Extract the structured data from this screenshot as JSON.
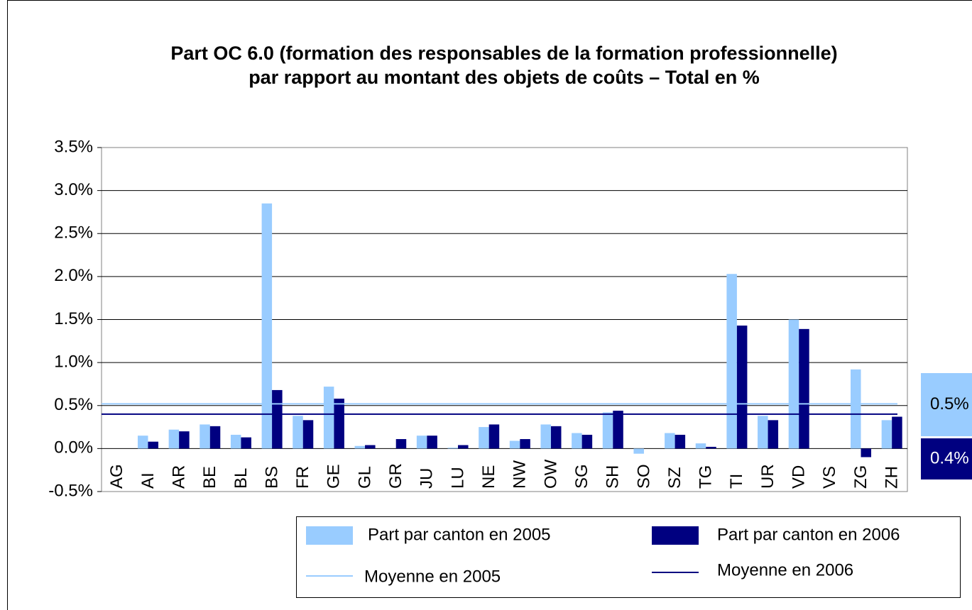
{
  "chart_data": {
    "type": "bar",
    "title": [
      "Part OC 6.0 (formation des responsables de la formation professionnelle)",
      "par rapport au montant des objets de coûts – Total en %"
    ],
    "categories": [
      "AG",
      "AI",
      "AR",
      "BE",
      "BL",
      "BS",
      "FR",
      "GE",
      "GL",
      "GR",
      "JU",
      "LU",
      "NE",
      "NW",
      "OW",
      "SG",
      "SH",
      "SO",
      "SZ",
      "TG",
      "TI",
      "UR",
      "VD",
      "VS",
      "ZG",
      "ZH"
    ],
    "series": [
      {
        "name": "Part par canton en 2005",
        "color": "#99ccff",
        "values": [
          0,
          0.15,
          0.22,
          0.28,
          0.16,
          2.85,
          0.38,
          0.72,
          0.03,
          0,
          0.15,
          0.01,
          0.25,
          0.09,
          0.28,
          0.18,
          0.42,
          -0.06,
          0.18,
          0.06,
          2.03,
          0.38,
          1.5,
          0,
          0.92,
          0.33
        ]
      },
      {
        "name": "Part par canton en 2006",
        "color": "#000080",
        "values": [
          0,
          0.08,
          0.2,
          0.26,
          0.13,
          0.68,
          0.33,
          0.58,
          0.04,
          0.11,
          0.15,
          0.04,
          0.28,
          0.11,
          0.26,
          0.16,
          0.44,
          0,
          0.16,
          0.02,
          1.43,
          0.33,
          1.39,
          0,
          -0.1,
          0.37
        ]
      }
    ],
    "mean_lines": [
      {
        "name": "Moyenne en 2005",
        "color": "#99ccff",
        "value": 0.52,
        "label": "0.5%"
      },
      {
        "name": "Moyenne en 2006",
        "color": "#000080",
        "value": 0.4,
        "label": "0.4%"
      }
    ],
    "ylim": [
      -0.5,
      3.5
    ],
    "yticks": [
      {
        "value": -0.5,
        "label": "-0.5%"
      },
      {
        "value": 0,
        "label": "0.0%"
      },
      {
        "value": 0.5,
        "label": "0.5%"
      },
      {
        "value": 1,
        "label": "1.0%"
      },
      {
        "value": 1.5,
        "label": "1.5%"
      },
      {
        "value": 2,
        "label": "2.0%"
      },
      {
        "value": 2.5,
        "label": "2.5%"
      },
      {
        "value": 3,
        "label": "3.0%"
      },
      {
        "value": 3.5,
        "label": "3.5%"
      }
    ],
    "grid": true
  }
}
